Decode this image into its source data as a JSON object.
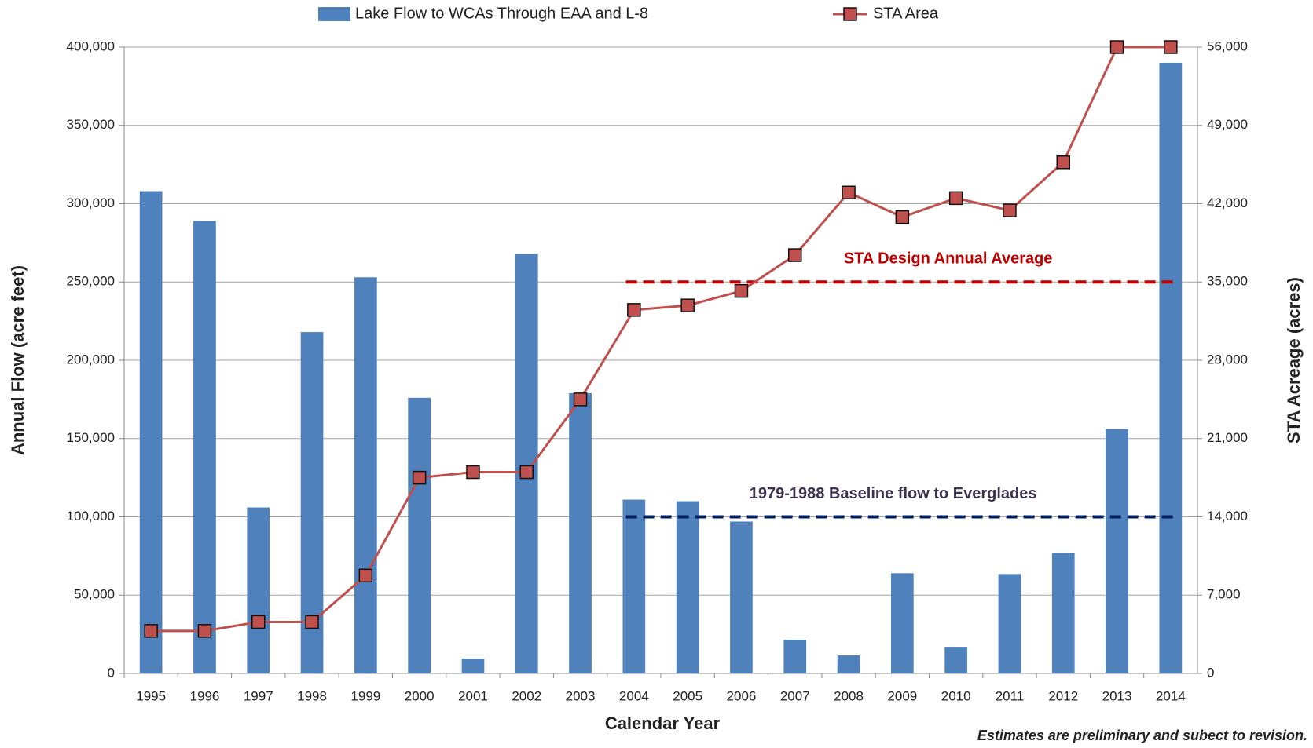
{
  "chart_data": {
    "type": "bar_line",
    "x_label": "Calendar Year",
    "y_label": "Annual Flow (acre feet)",
    "y2_label": "STA Acreage (acres)",
    "note": "Estimates are preliminary and subect to revision.",
    "categories": [
      "1995",
      "1996",
      "1997",
      "1998",
      "1999",
      "2000",
      "2001",
      "2002",
      "2003",
      "2004",
      "2005",
      "2006",
      "2007",
      "2008",
      "2009",
      "2010",
      "2011",
      "2012",
      "2013",
      "2014"
    ],
    "series": [
      {
        "name": "Lake Flow to WCAs Through EAA and L-8",
        "type": "bar",
        "axis": "y",
        "color": "#4f81bd",
        "values": [
          308000,
          289000,
          106000,
          218000,
          253000,
          176000,
          9500,
          268000,
          179000,
          111000,
          110000,
          97000,
          21500,
          11500,
          64000,
          17000,
          63500,
          77000,
          156000,
          390000
        ]
      },
      {
        "name": "STA Area",
        "type": "line",
        "axis": "y2",
        "color": "#c0504d",
        "values": [
          3800,
          3800,
          4600,
          4600,
          8750,
          17500,
          18000,
          18000,
          24500,
          32500,
          32900,
          34200,
          37400,
          43000,
          40800,
          42500,
          41400,
          45700,
          56000,
          56000
        ]
      }
    ],
    "reference_lines": [
      {
        "label": "STA Design Annual Average",
        "value": 35000,
        "axis": "y2",
        "color": "#c00000",
        "text_color": "#c00000",
        "from": "2004",
        "to": "2014"
      },
      {
        "label": "1979-1988 Baseline flow to Everglades",
        "value": 100000,
        "axis": "y",
        "color": "#002060",
        "text_color": "#3f3151",
        "from": "2004",
        "to": "2014"
      }
    ],
    "ylim": [
      0,
      400000
    ],
    "yticks": [
      0,
      {
        "value": 50000,
        "label": "50,000"
      },
      {
        "value": 100000,
        "label": "100,000"
      },
      {
        "value": 150000,
        "label": "150,000"
      },
      {
        "value": 200000,
        "label": "200,000"
      },
      {
        "value": 250000,
        "label": "250,000"
      },
      {
        "value": 300000,
        "label": "300,000"
      },
      {
        "value": 350000,
        "label": "350,000"
      },
      {
        "value": 400000,
        "label": "400,000"
      }
    ],
    "y2lim": [
      0,
      56000
    ],
    "y2ticks": [
      0,
      {
        "value": 7000,
        "label": "7,000"
      },
      {
        "value": 14000,
        "label": "14,000"
      },
      {
        "value": 21000,
        "label": "21,000"
      },
      {
        "value": 28000,
        "label": "28,000"
      },
      {
        "value": 35000,
        "label": "35,000"
      },
      {
        "value": 42000,
        "label": "42,000"
      },
      {
        "value": 49000,
        "label": "49,000"
      },
      {
        "value": 56000,
        "label": "56,000"
      }
    ],
    "grid": true,
    "legend": "top"
  }
}
